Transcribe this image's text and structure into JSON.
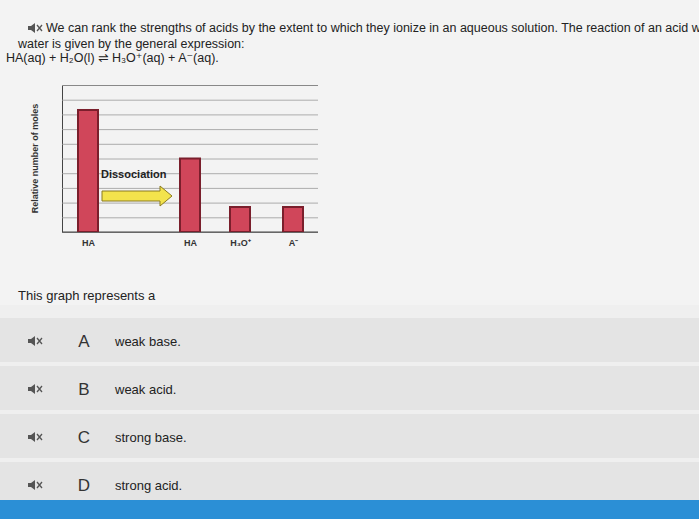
{
  "question": {
    "text_lines": [
      "We can rank the strengths of acids by the extent to which they ionize in an aqueous solution. The reaction of an acid with",
      "water is given by the general expression:"
    ],
    "equation": "HA(aq) + H₂O(l) ⇌ H₃O⁺(aq) + A⁻(aq).",
    "prompt": "This graph represents a"
  },
  "chart_data": {
    "type": "bar",
    "y_label": "Relative number of moles",
    "categories": [
      "HA",
      "HA",
      "H₃O⁺",
      "A⁻"
    ],
    "values": [
      8.3,
      5,
      1.7,
      1.7
    ],
    "color": "#d0465a",
    "ylim": [
      0,
      10
    ],
    "yticks": [
      0,
      1,
      2,
      3,
      4,
      5,
      6,
      7,
      8,
      9,
      10
    ],
    "grid": true,
    "tick_labels": "x",
    "annotation": "Dissociation"
  },
  "options": [
    {
      "letter": "A",
      "text": "weak base."
    },
    {
      "letter": "B",
      "text": "weak acid."
    },
    {
      "letter": "C",
      "text": "strong base."
    },
    {
      "letter": "D",
      "text": "strong acid."
    }
  ]
}
